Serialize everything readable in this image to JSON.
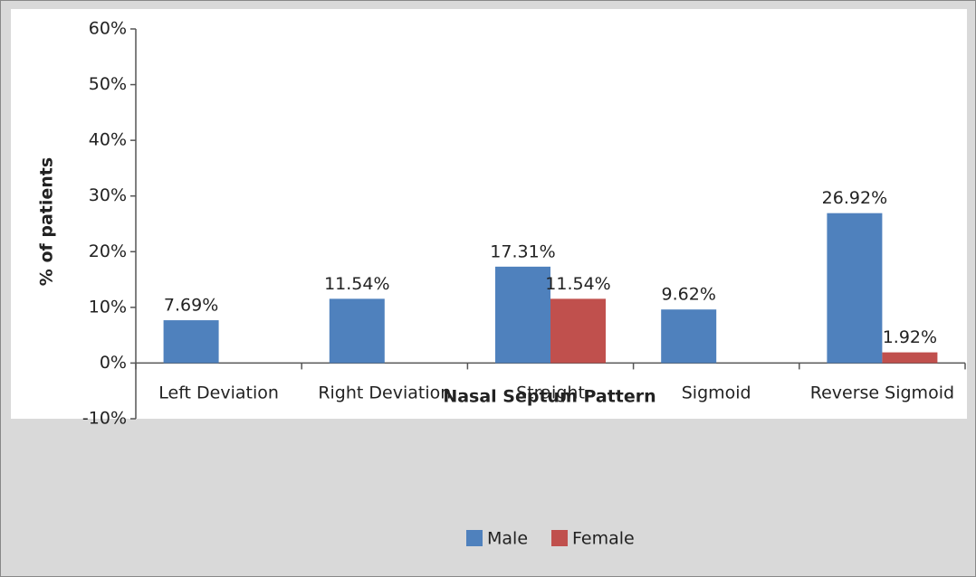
{
  "chart_data": {
    "type": "bar",
    "x_label": "Nasal Septum Pattern",
    "y_label": "% of patients",
    "categories": [
      "Left Deviation",
      "Right Deviation",
      "Straight",
      "Sigmoid",
      "Reverse Sigmoid"
    ],
    "series": [
      {
        "name": "Male",
        "color": "#4f81bd",
        "values": [
          7.69,
          11.54,
          17.31,
          9.62,
          26.92
        ],
        "value_labels": [
          "7.69%",
          "11.54%",
          "17.31%",
          "9.62%",
          "26.92%"
        ]
      },
      {
        "name": "Female",
        "color": "#c0504d",
        "values": [
          null,
          null,
          11.54,
          null,
          1.92
        ],
        "value_labels": [
          null,
          null,
          "11.54%",
          null,
          "1.92%"
        ]
      }
    ],
    "ylim": [
      -10,
      60
    ],
    "yticks": [
      {
        "value": -10,
        "label": "-10%"
      },
      {
        "value": 0,
        "label": "0%"
      },
      {
        "value": 10,
        "label": "10%"
      },
      {
        "value": 20,
        "label": "20%"
      },
      {
        "value": 30,
        "label": "30%"
      },
      {
        "value": 40,
        "label": "40%"
      },
      {
        "value": 50,
        "label": "50%"
      },
      {
        "value": 60,
        "label": "60%"
      }
    ],
    "legend": "bottom"
  }
}
